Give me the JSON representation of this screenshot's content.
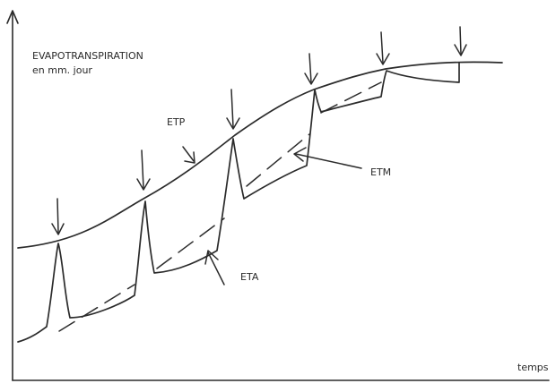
{
  "labels": {
    "ylabel_line1": "EVAPOTRANSPIRATION",
    "ylabel_line2": "en mm. jour",
    "xlabel": "temps",
    "etp": "ETP",
    "etm": "ETM",
    "eta": "ETA"
  }
}
